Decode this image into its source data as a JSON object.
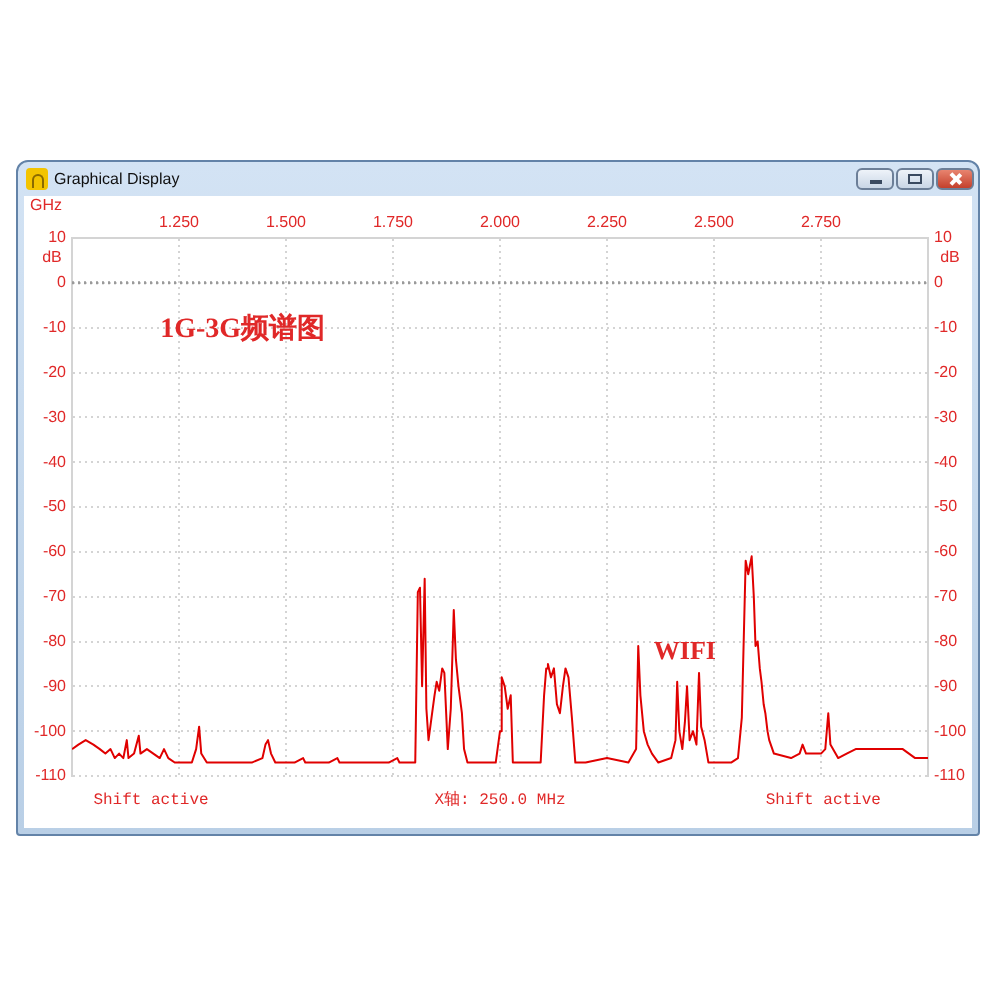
{
  "chart_data": {
    "type": "line",
    "title": "Graphical Display",
    "xlabel": "GHz",
    "ylabel": "dB",
    "y2label": "dB",
    "x": [
      1.0,
      1.015,
      1.032,
      1.05,
      1.065,
      1.078,
      1.09,
      1.1,
      1.11,
      1.12,
      1.128,
      1.132,
      1.145,
      1.156,
      1.16,
      1.175,
      1.19,
      1.205,
      1.215,
      1.225,
      1.24,
      1.26,
      1.28,
      1.29,
      1.297,
      1.302,
      1.315,
      1.34,
      1.38,
      1.42,
      1.445,
      1.452,
      1.458,
      1.465,
      1.475,
      1.52,
      1.54,
      1.545,
      1.6,
      1.62,
      1.625,
      1.69,
      1.74,
      1.76,
      1.765,
      1.802,
      1.808,
      1.813,
      1.818,
      1.824,
      1.828,
      1.833,
      1.84,
      1.847,
      1.852,
      1.858,
      1.865,
      1.87,
      1.878,
      1.885,
      1.892,
      1.897,
      1.903,
      1.911,
      1.916,
      1.924,
      1.99,
      2.0,
      2.004,
      2.011,
      2.018,
      2.025,
      2.03,
      2.095,
      2.103,
      2.108,
      2.112,
      2.119,
      2.126,
      2.133,
      2.14,
      2.147,
      2.153,
      2.16,
      2.168,
      2.176,
      2.2,
      2.25,
      2.3,
      2.318,
      2.323,
      2.328,
      2.336,
      2.345,
      2.355,
      2.37,
      2.4,
      2.41,
      2.414,
      2.419,
      2.426,
      2.432,
      2.437,
      2.443,
      2.451,
      2.459,
      2.465,
      2.47,
      2.478,
      2.487,
      2.54,
      2.556,
      2.565,
      2.574,
      2.58,
      2.588,
      2.593,
      2.597,
      2.602,
      2.607,
      2.611,
      2.616,
      2.62,
      2.625,
      2.629,
      2.64,
      2.68,
      2.7,
      2.707,
      2.715,
      2.75,
      2.76,
      2.767,
      2.772,
      2.79,
      2.81,
      2.831,
      2.87,
      2.9,
      2.941,
      2.97,
      3.0
    ],
    "series": [
      {
        "color": "#e00000",
        "values": [
          -104,
          -103,
          -102,
          -103,
          -104,
          -105,
          -104,
          -106,
          -105,
          -106,
          -102,
          -106,
          -105,
          -101,
          -105,
          -104,
          -105,
          -106,
          -104,
          -106,
          -107,
          -107,
          -107,
          -104,
          -99,
          -105,
          -107,
          -107,
          -107,
          -107,
          -106,
          -103,
          -102,
          -105,
          -107,
          -107,
          -106,
          -107,
          -107,
          -106,
          -107,
          -107,
          -107,
          -106,
          -107,
          -107,
          -69,
          -68,
          -90,
          -66,
          -95,
          -102,
          -97,
          -92,
          -89,
          -91,
          -86,
          -87,
          -104,
          -95,
          -73,
          -84,
          -90,
          -96,
          -104,
          -107,
          -107,
          -100,
          -88,
          -90,
          -95,
          -92,
          -107,
          -107,
          -92,
          -86,
          -85,
          -88,
          -86,
          -94,
          -96,
          -90,
          -86,
          -88,
          -97,
          -107,
          -107,
          -106,
          -107,
          -104,
          -81,
          -92,
          -100,
          -103,
          -105,
          -107,
          -106,
          -102,
          -89,
          -100,
          -104,
          -98,
          -90,
          -102,
          -100,
          -103,
          -87,
          -99,
          -102,
          -107,
          -107,
          -106,
          -97,
          -62,
          -65,
          -61,
          -70,
          -81,
          -80,
          -86,
          -89,
          -94,
          -96,
          -100,
          -102,
          -105,
          -106,
          -105,
          -103,
          -105,
          -105,
          -104,
          -96,
          -103,
          -106,
          -105,
          -104,
          -104,
          -104,
          -104,
          -106,
          -106
        ]
      }
    ],
    "xlim": [
      1.0,
      3.0
    ],
    "xticks": [
      {
        "value": 1.25,
        "label": "1.250"
      },
      {
        "value": 1.5,
        "label": "1.500"
      },
      {
        "value": 1.75,
        "label": "1.750"
      },
      {
        "value": 2.0,
        "label": "2.000"
      },
      {
        "value": 2.25,
        "label": "2.250"
      },
      {
        "value": 2.5,
        "label": "2.500"
      },
      {
        "value": 2.75,
        "label": "2.750"
      }
    ],
    "ylim": [
      -110,
      10
    ],
    "yticks": [
      -110,
      -100,
      -90,
      -80,
      -70,
      -60,
      -50,
      -40,
      -30,
      -20,
      -10,
      0,
      10
    ],
    "y2lim": [
      -110,
      10
    ],
    "y2ticks": [
      -110,
      -100,
      -90,
      -80,
      -70,
      -60,
      -50,
      -40,
      -30,
      -20,
      -10,
      0,
      10
    ],
    "grid": true,
    "marker": "none",
    "line_style": "solid",
    "ref_lines": [
      {
        "axis": "y",
        "value": 0,
        "color": "#9a9a9a",
        "line_style": "dotted"
      }
    ],
    "annotations": [
      "1G-3G频谱图",
      "WIFI",
      "Shift active",
      "X轴: 250.0 MHz",
      "Shift active"
    ]
  }
}
